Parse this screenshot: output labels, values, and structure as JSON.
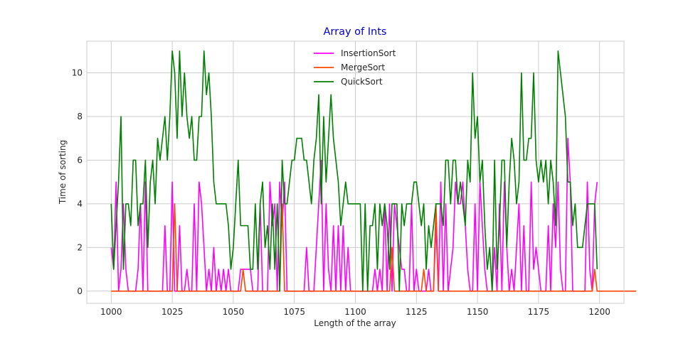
{
  "chart_data": {
    "type": "line",
    "title": "Array of Ints",
    "xlabel": "Length of the array",
    "ylabel": "Time of sorting",
    "xlim": [
      990,
      1210
    ],
    "ylim": [
      -0.56,
      11.45
    ],
    "xticks": [
      1000,
      1025,
      1050,
      1075,
      1100,
      1125,
      1150,
      1175,
      1200
    ],
    "yticks": [
      0,
      2,
      4,
      6,
      8,
      10
    ],
    "grid": true,
    "legend_position": "top-center",
    "x_start": 1000,
    "x_step": 1,
    "series": [
      {
        "name": "InsertionSort",
        "color": "#ff00ff",
        "values": [
          2,
          1,
          5,
          0,
          1,
          4,
          1,
          0,
          0,
          0,
          0,
          1,
          4,
          0,
          5,
          0,
          0,
          0,
          0,
          0,
          0,
          0,
          3,
          0,
          0,
          5,
          0,
          0,
          3,
          0,
          0,
          1,
          0,
          0,
          4,
          0,
          5,
          4,
          2,
          0,
          1,
          0,
          2,
          0,
          1,
          0,
          1,
          0,
          1,
          0,
          0,
          0,
          0,
          1,
          1,
          1,
          1,
          1,
          0,
          0,
          0,
          4,
          0,
          0,
          0,
          5,
          3,
          4,
          0,
          5,
          3,
          5,
          0,
          0,
          0,
          0,
          0,
          0,
          0,
          0,
          2,
          0,
          0,
          0,
          2,
          4,
          6,
          0,
          4,
          1,
          0,
          3,
          0,
          3,
          0,
          3,
          0,
          2,
          0,
          0,
          0,
          0,
          0,
          0,
          0,
          0,
          0,
          0,
          1,
          0,
          1,
          0,
          4,
          0,
          4,
          0,
          4,
          3,
          2,
          1,
          1,
          0,
          0,
          4,
          0,
          1,
          0,
          0,
          0,
          0,
          1,
          0,
          0,
          3,
          0,
          5,
          0,
          4,
          0,
          1,
          2,
          5,
          4,
          4,
          5,
          3,
          1,
          0,
          0,
          4,
          0,
          5,
          3,
          1,
          0,
          0,
          0,
          2,
          0,
          4,
          0,
          5,
          2,
          0,
          1,
          0,
          2,
          4,
          0,
          3,
          0,
          0,
          5,
          1,
          2,
          1,
          0,
          0,
          0,
          3,
          0,
          4,
          2,
          5,
          1,
          0,
          0,
          7,
          5,
          0,
          0,
          0,
          0,
          0,
          0,
          5,
          1,
          0,
          4,
          5
        ]
      },
      {
        "name": "MergeSort",
        "color": "#ff4500",
        "values": [
          0,
          0,
          0,
          0,
          0,
          0,
          0,
          0,
          0,
          0,
          0,
          0,
          0,
          0,
          0,
          0,
          0,
          0,
          0,
          0,
          0,
          0,
          0,
          0,
          0,
          0,
          4,
          0,
          0,
          0,
          0,
          0,
          0,
          0,
          0,
          0,
          0,
          0,
          0,
          0,
          0,
          0,
          0,
          0,
          0,
          0,
          0,
          0,
          0,
          0,
          0,
          0,
          0,
          0,
          1,
          0,
          0,
          0,
          0,
          0,
          0,
          0,
          0,
          0,
          0,
          0,
          0,
          0,
          0,
          0,
          4,
          0,
          0,
          0,
          0,
          0,
          0,
          0,
          0,
          0,
          0,
          0,
          0,
          0,
          0,
          0,
          0,
          0,
          0,
          0,
          0,
          0,
          0,
          0,
          0,
          0,
          0,
          0,
          0,
          0,
          0,
          0,
          0,
          0,
          0,
          0,
          0,
          0,
          0,
          0,
          0,
          0,
          0,
          0,
          0,
          2,
          0,
          0,
          0,
          0,
          0,
          0,
          0,
          0,
          0,
          0,
          0,
          0,
          1,
          0,
          0,
          0,
          0,
          4,
          0,
          0,
          0,
          0,
          0,
          0,
          0,
          0,
          0,
          0,
          0,
          0,
          0,
          0,
          0,
          0,
          0,
          0,
          0,
          0,
          0,
          0,
          0,
          0,
          0,
          0,
          0,
          0,
          0,
          0,
          0,
          0,
          0,
          0,
          0,
          0,
          0,
          0,
          0,
          0,
          0,
          0,
          0,
          0,
          0,
          0,
          0,
          0,
          0,
          0,
          0,
          0,
          0,
          0,
          0,
          0,
          0,
          0,
          0,
          0,
          0,
          0,
          0,
          0,
          1,
          0,
          0,
          0,
          0,
          0,
          0,
          0,
          0,
          0,
          0,
          0,
          0,
          0,
          0,
          0,
          0,
          0
        ]
      },
      {
        "name": "QuickSort",
        "color": "#008000",
        "values": [
          4,
          1,
          3,
          5,
          8,
          1,
          4,
          4,
          3,
          6,
          6,
          3,
          4,
          4,
          6,
          2,
          5,
          6,
          4,
          7,
          6,
          7,
          8,
          6,
          8,
          11,
          10,
          7,
          11,
          8,
          10,
          8,
          7,
          8,
          6,
          6,
          8,
          8,
          11,
          9,
          10,
          8,
          5,
          4,
          4,
          4,
          4,
          4,
          3,
          1,
          2,
          4,
          6,
          3,
          3,
          3,
          3,
          1,
          1,
          4,
          1,
          4,
          5,
          2,
          3,
          1,
          4,
          1,
          4,
          0,
          6,
          4,
          4,
          5,
          6,
          6,
          7,
          7,
          7,
          6,
          6,
          5,
          4,
          6,
          7,
          9,
          4,
          8,
          5,
          7,
          9,
          7,
          6,
          5,
          3,
          4,
          5,
          4,
          4,
          4,
          4,
          4,
          4,
          0,
          4,
          0,
          3,
          3,
          4,
          1,
          4,
          3,
          4,
          3,
          1,
          4,
          4,
          4,
          0,
          4,
          3,
          4,
          4,
          4,
          5,
          5,
          4,
          3,
          4,
          1,
          3,
          2,
          3,
          4,
          4,
          4,
          3,
          6,
          6,
          4,
          6,
          6,
          4,
          5,
          4,
          3,
          6,
          5,
          10,
          7,
          8,
          5,
          6,
          3,
          1,
          2,
          0,
          6,
          1,
          3,
          6,
          6,
          2,
          5,
          7,
          6,
          4,
          5,
          10,
          6,
          6,
          7,
          7,
          10,
          6,
          5,
          6,
          5,
          6,
          4,
          6,
          5,
          3,
          11,
          10,
          9,
          8,
          5,
          5,
          3,
          4,
          2,
          2,
          2,
          3,
          4,
          4,
          4,
          4,
          1
        ]
      }
    ]
  }
}
